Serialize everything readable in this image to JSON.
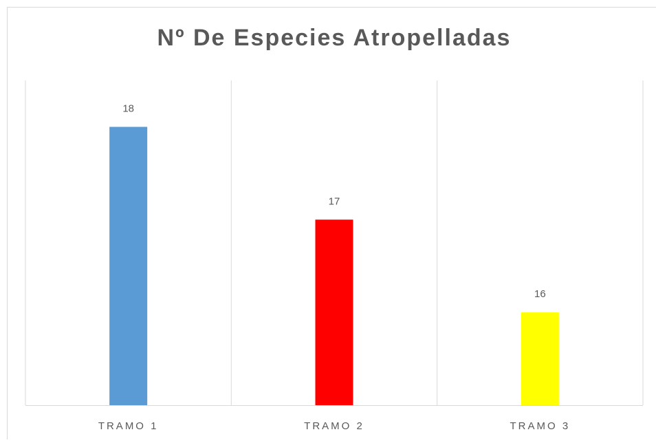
{
  "chart_data": {
    "type": "bar",
    "title": "Nº De Especies Atropelladas",
    "categories": [
      "TRAMO 1",
      "TRAMO 2",
      "TRAMO 3"
    ],
    "values": [
      18,
      17,
      16
    ],
    "colors": [
      "#5b9bd5",
      "#ff0000",
      "#ffff00"
    ],
    "ylim": [
      15,
      18.5
    ]
  }
}
